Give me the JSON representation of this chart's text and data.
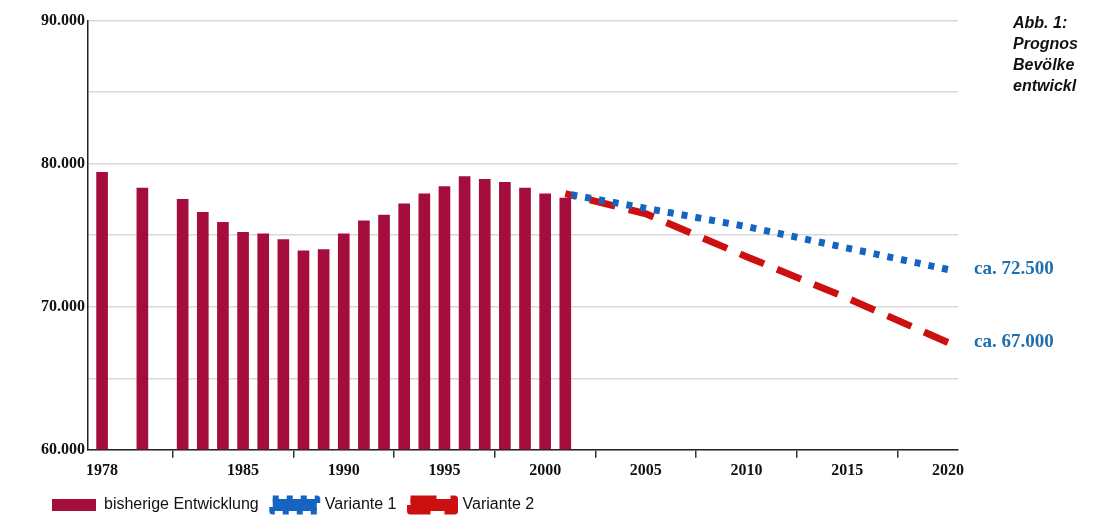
{
  "chart_data": {
    "type": "bar",
    "title": "Abb. 1:\nPrognos\nBevölke\nentwickl",
    "xlim": [
      1977.3,
      2020.5
    ],
    "xticks": [
      1978,
      1985,
      1990,
      1995,
      2000,
      2005,
      2010,
      2015,
      2020
    ],
    "ylim": [
      60000,
      90000
    ],
    "yticks": [
      {
        "value": 60000,
        "label": "60.000"
      },
      {
        "value": 65000,
        "label": null
      },
      {
        "value": 70000,
        "label": "70.000"
      },
      {
        "value": 75000,
        "label": null
      },
      {
        "value": 80000,
        "label": "80.000"
      },
      {
        "value": 85000,
        "label": null
      },
      {
        "value": 90000,
        "label": "90.000"
      }
    ],
    "grid": "y",
    "legend": "bottom",
    "marker": "none",
    "series": [
      {
        "name": "bisherige Entwicklung",
        "color": "#a50d3c",
        "x": [
          1978,
          1980,
          1982,
          1983,
          1984,
          1985,
          1986,
          1987,
          1988,
          1989,
          1990,
          1991,
          1992,
          1993,
          1994,
          1995,
          1996,
          1997,
          1998,
          1999,
          2000,
          2001
        ],
        "values": [
          79400,
          78300,
          77500,
          76600,
          75900,
          75200,
          75100,
          74700,
          73900,
          74000,
          75100,
          76000,
          76400,
          77200,
          77900,
          78400,
          79100,
          78900,
          78700,
          78300,
          77900,
          77600
        ]
      },
      {
        "name": "Variante 1",
        "type": "line",
        "line_style": "dotted",
        "color": "#1565c0",
        "x": [
          2001,
          2010,
          2020
        ],
        "values": [
          77900,
          75600,
          72600
        ]
      },
      {
        "name": "Variante 2",
        "type": "line",
        "line_style": "dashed",
        "color": "#cc1010",
        "x": [
          2001,
          2005,
          2010,
          2015,
          2020
        ],
        "values": [
          77900,
          76500,
          73500,
          70600,
          67500
        ]
      }
    ],
    "annotations": [
      "ca. 72.500",
      "ca. 67.000"
    ]
  }
}
